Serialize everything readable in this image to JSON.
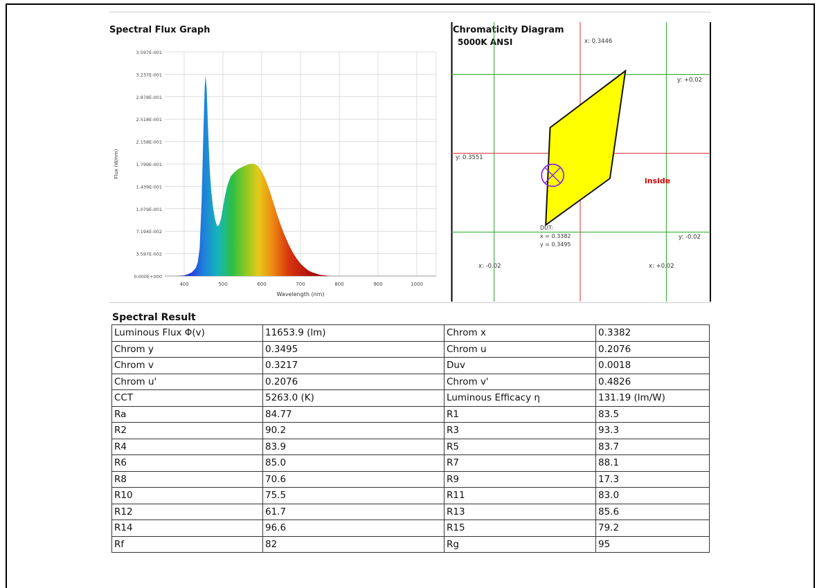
{
  "spectral_graph": {
    "title": "Spectral Flux Graph"
  },
  "chromaticity": {
    "title": "Chromaticity Diagram",
    "subtitle": "5000K ANSI",
    "label_x_center": "x: 0.3446",
    "label_y_center": "y: 0.3551",
    "label_y_plus": "y: +0.02",
    "label_y_minus": "y: -0.02",
    "label_x_minus": "x: -0.02",
    "label_x_plus": "x: +0.02",
    "status": "inside",
    "dut_title": "DUT:",
    "dut_x": "x = 0.3382",
    "dut_y": "y = 0.3495",
    "colors": {
      "region": "#ffff00",
      "cross_red": "#e03030",
      "grid_green": "#22aa22",
      "marker": "#8a2be2",
      "status": "#cc0000"
    }
  },
  "spectral_result": {
    "title": "Spectral Result",
    "rows": [
      [
        "Luminous Flux Φ(v)",
        "11653.9 (lm)",
        "Chrom x",
        "0.3382"
      ],
      [
        "Chrom y",
        "0.3495",
        "Chrom u",
        "0.2076"
      ],
      [
        "Chrom v",
        "0.3217",
        "Duv",
        "0.0018"
      ],
      [
        "Chrom u'",
        "0.2076",
        "Chrom v'",
        "0.4826"
      ],
      [
        "CCT",
        "5263.0 (K)",
        "Luminous Efficacy η",
        "131.19 (lm/W)"
      ],
      [
        "Ra",
        "84.77",
        "R1",
        "83.5"
      ],
      [
        "R2",
        "90.2",
        "R3",
        "93.3"
      ],
      [
        "R4",
        "83.9",
        "R5",
        "83.7"
      ],
      [
        "R6",
        "85.0",
        "R7",
        "88.1"
      ],
      [
        "R8",
        "70.6",
        "R9",
        "17.3"
      ],
      [
        "R10",
        "75.5",
        "R11",
        "83.0"
      ],
      [
        "R12",
        "61.7",
        "R13",
        "85.6"
      ],
      [
        "R14",
        "96.6",
        "R15",
        "79.2"
      ],
      [
        "Rf",
        "82",
        "Rg",
        "95"
      ]
    ]
  },
  "chart_data": [
    {
      "type": "area",
      "title": "Spectral Flux Graph",
      "xlabel": "Wavelength (nm)",
      "ylabel": "Flux (W/nm)",
      "xlim": [
        350,
        1050
      ],
      "ylim": [
        0,
        0.3597
      ],
      "x_ticks": [
        "400",
        "500",
        "600",
        "700",
        "800",
        "900",
        "1000"
      ],
      "y_ticks": [
        "0.000E+000",
        "3.597E-002",
        "7.194E-002",
        "1.079E-001",
        "1.439E-001",
        "1.799E-001",
        "2.158E-001",
        "2.518E-001",
        "2.878E-001",
        "3.237E-001",
        "3.597E-001"
      ],
      "grid": true,
      "series": [
        {
          "x": [
            380,
            400,
            410,
            420,
            430,
            435,
            440,
            445,
            450,
            453,
            455,
            458,
            462,
            466,
            470,
            475,
            480,
            485,
            490,
            495,
            500,
            505,
            510,
            515,
            520,
            530,
            540,
            550,
            560,
            570,
            580,
            590,
            600,
            610,
            620,
            630,
            640,
            650,
            660,
            670,
            680,
            690,
            700,
            710,
            720,
            730,
            740,
            750,
            760,
            770,
            780
          ],
          "values": [
            0.0,
            0.001,
            0.003,
            0.006,
            0.013,
            0.022,
            0.045,
            0.12,
            0.24,
            0.305,
            0.322,
            0.3,
            0.23,
            0.17,
            0.135,
            0.108,
            0.09,
            0.08,
            0.082,
            0.092,
            0.11,
            0.128,
            0.142,
            0.152,
            0.16,
            0.167,
            0.172,
            0.175,
            0.178,
            0.18,
            0.18,
            0.177,
            0.168,
            0.155,
            0.138,
            0.118,
            0.098,
            0.08,
            0.064,
            0.05,
            0.038,
            0.028,
            0.02,
            0.014,
            0.009,
            0.006,
            0.004,
            0.002,
            0.0012,
            0.0005,
            0.0
          ]
        }
      ]
    },
    {
      "type": "scatter",
      "title": "Chromaticity Diagram",
      "center": {
        "x": 0.3446,
        "y": 0.3551
      },
      "xlim": [
        0.3246,
        0.3646
      ],
      "ylim": [
        0.3351,
        0.3751
      ],
      "series": [
        {
          "name": "5000K ANSI",
          "x": [
            0.3376,
            0.3551,
            0.3515,
            0.3366
          ],
          "y": [
            0.3616,
            0.376,
            0.3487,
            0.3369
          ]
        },
        {
          "name": "DUT",
          "x": [
            0.3382
          ],
          "y": [
            0.3495
          ]
        }
      ]
    }
  ]
}
